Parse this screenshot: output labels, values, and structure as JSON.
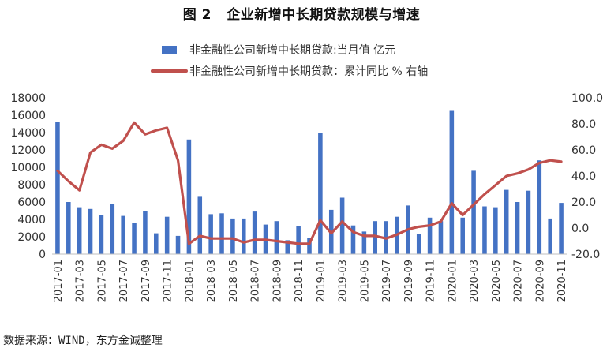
{
  "chart_data": {
    "type": "bar+line",
    "title": "图 2   企业新增中长期贷款规模与增速",
    "source": "数据来源：WIND，东方金诚整理",
    "legend_placement": "top-center",
    "grid": false,
    "colors": {
      "bar": "#4472C4",
      "line": "#C0504D",
      "axis": "#333333"
    },
    "x_tick_labels": [
      "2017-01",
      "2017-03",
      "2017-05",
      "2017-07",
      "2017-09",
      "2017-11",
      "2018-01",
      "2018-03",
      "2018-05",
      "2018-07",
      "2018-09",
      "2018-11",
      "2019-01",
      "2019-03",
      "2019-05",
      "2019-07",
      "2019-09",
      "2019-11",
      "2020-01",
      "2020-03",
      "2020-05",
      "2020-07",
      "2020-09",
      "2020-11"
    ],
    "categories": [
      "2017-01",
      "2017-02",
      "2017-03",
      "2017-04",
      "2017-05",
      "2017-06",
      "2017-07",
      "2017-08",
      "2017-09",
      "2017-10",
      "2017-11",
      "2017-12",
      "2018-01",
      "2018-02",
      "2018-03",
      "2018-04",
      "2018-05",
      "2018-06",
      "2018-07",
      "2018-08",
      "2018-09",
      "2018-10",
      "2018-11",
      "2018-12",
      "2019-01",
      "2019-02",
      "2019-03",
      "2019-04",
      "2019-05",
      "2019-06",
      "2019-07",
      "2019-08",
      "2019-09",
      "2019-10",
      "2019-11",
      "2019-12",
      "2020-01",
      "2020-02",
      "2020-03",
      "2020-04",
      "2020-05",
      "2020-06",
      "2020-07",
      "2020-08",
      "2020-09",
      "2020-10",
      "2020-11"
    ],
    "y_left": {
      "min": 0,
      "max": 18000,
      "ticks": [
        "0",
        "2000",
        "4000",
        "6000",
        "8000",
        "10000",
        "12000",
        "14000",
        "16000",
        "18000"
      ]
    },
    "y_right": {
      "min": -20,
      "max": 100,
      "ticks": [
        "-20.0",
        "0.0",
        "20.0",
        "40.0",
        "60.0",
        "80.0",
        "100.0"
      ]
    },
    "series": [
      {
        "name": "非金融性公司新增中长期贷款:当月值 亿元",
        "type": "bar",
        "axis": "left",
        "values": [
          15200,
          6000,
          5400,
          5200,
          4500,
          5800,
          4400,
          3600,
          5000,
          2400,
          4300,
          2100,
          13200,
          6600,
          4600,
          4700,
          4100,
          4100,
          4900,
          3400,
          3800,
          1600,
          3200,
          1900,
          14000,
          5100,
          6500,
          3300,
          2600,
          3800,
          3800,
          4300,
          5600,
          2300,
          4200,
          3800,
          16500,
          4200,
          9600,
          5500,
          5400,
          7400,
          6000,
          7300,
          10800,
          4100,
          5900
        ]
      },
      {
        "name": "非金融性公司新增中长期贷款：累计同比 % 右轴",
        "type": "line",
        "axis": "right",
        "values": [
          44,
          36,
          29,
          58,
          64,
          61,
          67,
          81,
          72,
          75,
          77,
          52,
          -12,
          -6,
          -8,
          -8,
          -8,
          -11,
          -9,
          -9,
          -10,
          -11,
          -12,
          -12,
          6,
          -4,
          5,
          -3,
          -6,
          -6,
          -8,
          -5,
          -1,
          1,
          2,
          5,
          19,
          10,
          18,
          26,
          33,
          40,
          42,
          45,
          50,
          52,
          51
        ]
      }
    ]
  }
}
